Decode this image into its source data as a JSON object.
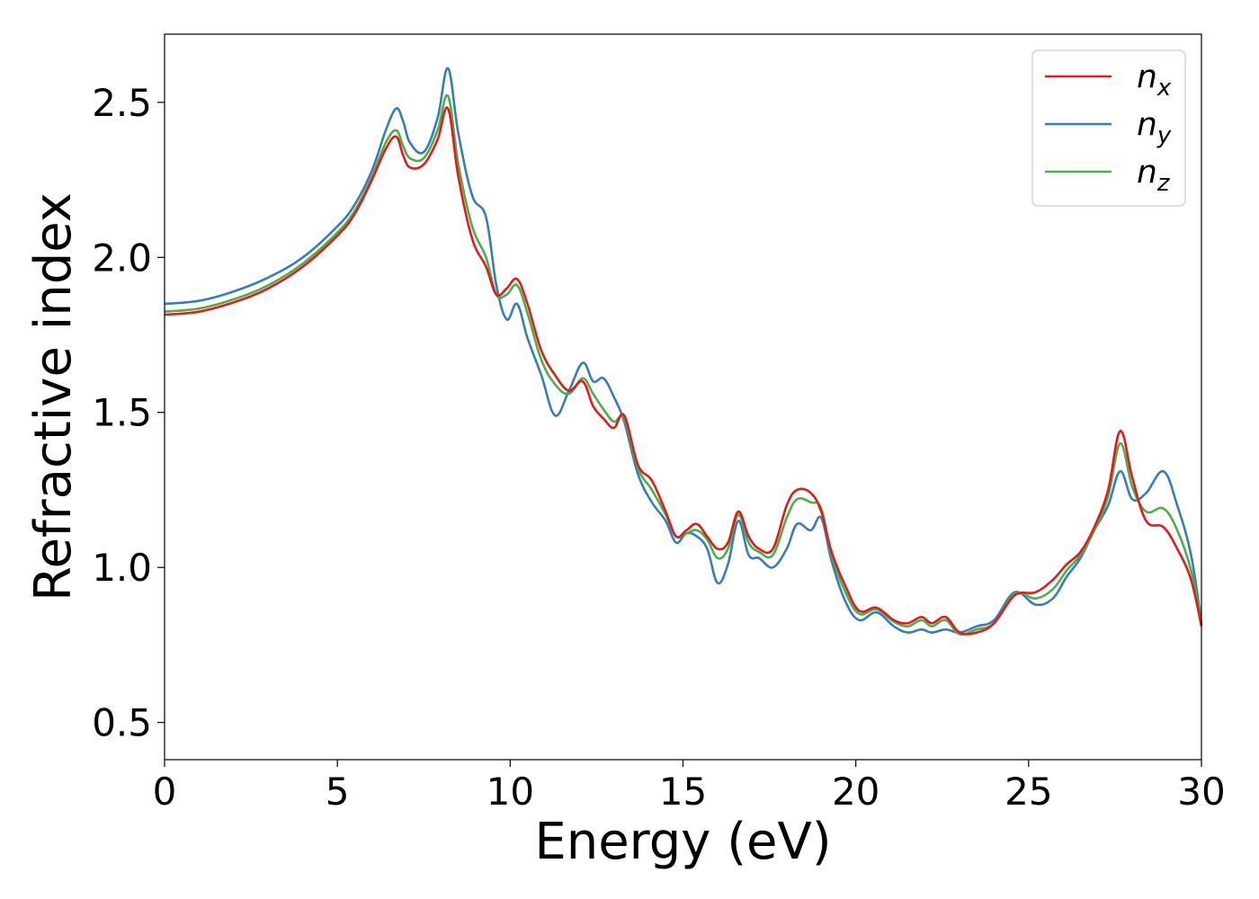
{
  "chart_data": {
    "type": "line",
    "title": "",
    "xlabel": "Energy (eV)",
    "ylabel": "Refractive index",
    "xlim": [
      0,
      30
    ],
    "ylim": [
      0.38,
      2.72
    ],
    "xticks": [
      0,
      5,
      10,
      15,
      20,
      25,
      30
    ],
    "yticks": [
      0.5,
      1.0,
      1.5,
      2.0,
      2.5
    ],
    "xtick_labels": [
      "0",
      "5",
      "10",
      "15",
      "20",
      "25",
      "30"
    ],
    "ytick_labels": [
      "0.5",
      "1.0",
      "1.5",
      "2.0",
      "2.5"
    ],
    "grid": false,
    "legend_position": "top-right",
    "series": [
      {
        "name": "n_x",
        "label_main": "n",
        "label_sub": "x",
        "color": "#e41a1c",
        "x": [
          0,
          1,
          2,
          3,
          4,
          5,
          5.5,
          6,
          6.4,
          6.7,
          6.9,
          7.1,
          7.5,
          7.9,
          8.2,
          8.5,
          8.9,
          9.3,
          9.6,
          9.9,
          10.2,
          10.5,
          10.9,
          11.3,
          11.7,
          12.1,
          12.4,
          12.7,
          13.0,
          13.3,
          13.7,
          14.1,
          14.5,
          14.8,
          15.1,
          15.4,
          15.7,
          16.0,
          16.3,
          16.6,
          16.9,
          17.2,
          17.6,
          18.0,
          18.3,
          18.7,
          19.0,
          19.3,
          19.7,
          20.1,
          20.6,
          21.1,
          21.5,
          21.9,
          22.2,
          22.6,
          23.0,
          23.5,
          24.0,
          24.6,
          25.2,
          25.7,
          26.1,
          26.5,
          26.9,
          27.3,
          27.65,
          28.0,
          28.4,
          28.9,
          29.3,
          29.7,
          30
        ],
        "y": [
          1.815,
          1.825,
          1.855,
          1.9,
          1.97,
          2.07,
          2.14,
          2.25,
          2.35,
          2.39,
          2.33,
          2.29,
          2.3,
          2.38,
          2.48,
          2.26,
          2.06,
          1.97,
          1.88,
          1.9,
          1.93,
          1.85,
          1.7,
          1.62,
          1.57,
          1.6,
          1.52,
          1.48,
          1.45,
          1.49,
          1.33,
          1.28,
          1.18,
          1.1,
          1.12,
          1.14,
          1.1,
          1.06,
          1.08,
          1.18,
          1.1,
          1.06,
          1.06,
          1.2,
          1.25,
          1.24,
          1.18,
          1.05,
          0.94,
          0.86,
          0.87,
          0.83,
          0.82,
          0.84,
          0.82,
          0.84,
          0.79,
          0.79,
          0.82,
          0.91,
          0.92,
          0.96,
          1.01,
          1.05,
          1.13,
          1.25,
          1.44,
          1.29,
          1.15,
          1.13,
          1.06,
          0.96,
          0.81
        ]
      },
      {
        "name": "n_y",
        "label_main": "n",
        "label_sub": "y",
        "color": "#377eb8",
        "x": [
          0,
          1,
          2,
          3,
          4,
          5,
          5.5,
          6,
          6.4,
          6.7,
          6.9,
          7.1,
          7.5,
          7.9,
          8.2,
          8.5,
          8.9,
          9.3,
          9.6,
          9.9,
          10.2,
          10.5,
          10.9,
          11.3,
          11.7,
          12.1,
          12.4,
          12.7,
          13.0,
          13.3,
          13.7,
          14.1,
          14.5,
          14.8,
          15.1,
          15.4,
          15.7,
          16.0,
          16.3,
          16.6,
          16.9,
          17.2,
          17.6,
          18.0,
          18.3,
          18.7,
          19.0,
          19.3,
          19.7,
          20.1,
          20.6,
          21.1,
          21.5,
          21.9,
          22.2,
          22.6,
          23.0,
          23.5,
          24.0,
          24.6,
          25.2,
          25.7,
          26.1,
          26.5,
          26.9,
          27.3,
          27.65,
          28.0,
          28.4,
          28.9,
          29.3,
          29.7,
          30
        ],
        "y": [
          1.85,
          1.86,
          1.89,
          1.935,
          2.0,
          2.1,
          2.17,
          2.28,
          2.41,
          2.48,
          2.44,
          2.37,
          2.34,
          2.45,
          2.61,
          2.4,
          2.2,
          2.13,
          1.91,
          1.8,
          1.85,
          1.74,
          1.62,
          1.49,
          1.57,
          1.66,
          1.6,
          1.61,
          1.55,
          1.47,
          1.3,
          1.21,
          1.15,
          1.08,
          1.11,
          1.1,
          1.06,
          0.95,
          1.01,
          1.15,
          1.04,
          1.03,
          1.0,
          1.06,
          1.14,
          1.12,
          1.16,
          1.02,
          0.89,
          0.83,
          0.855,
          0.81,
          0.79,
          0.8,
          0.79,
          0.8,
          0.79,
          0.81,
          0.83,
          0.92,
          0.88,
          0.9,
          0.97,
          1.03,
          1.12,
          1.2,
          1.31,
          1.22,
          1.24,
          1.31,
          1.2,
          1.04,
          0.82
        ]
      },
      {
        "name": "n_z",
        "label_main": "n",
        "label_sub": "z",
        "color": "#4daf4a",
        "x": [
          0,
          1,
          2,
          3,
          4,
          5,
          5.5,
          6,
          6.4,
          6.7,
          6.9,
          7.1,
          7.5,
          7.9,
          8.2,
          8.5,
          8.9,
          9.3,
          9.6,
          9.9,
          10.2,
          10.5,
          10.9,
          11.3,
          11.7,
          12.1,
          12.4,
          12.7,
          13.0,
          13.3,
          13.7,
          14.1,
          14.5,
          14.8,
          15.1,
          15.4,
          15.7,
          16.0,
          16.3,
          16.6,
          16.9,
          17.2,
          17.6,
          18.0,
          18.3,
          18.7,
          19.0,
          19.3,
          19.7,
          20.1,
          20.6,
          21.1,
          21.5,
          21.9,
          22.2,
          22.6,
          23.0,
          23.5,
          24.0,
          24.6,
          25.2,
          25.7,
          26.1,
          26.5,
          26.9,
          27.3,
          27.65,
          28.0,
          28.4,
          28.9,
          29.3,
          29.7,
          30
        ],
        "y": [
          1.825,
          1.835,
          1.865,
          1.91,
          1.98,
          2.08,
          2.15,
          2.26,
          2.37,
          2.41,
          2.36,
          2.32,
          2.32,
          2.41,
          2.52,
          2.3,
          2.1,
          2.0,
          1.88,
          1.88,
          1.91,
          1.82,
          1.67,
          1.59,
          1.56,
          1.61,
          1.56,
          1.51,
          1.47,
          1.48,
          1.32,
          1.25,
          1.17,
          1.1,
          1.11,
          1.12,
          1.09,
          1.03,
          1.06,
          1.17,
          1.08,
          1.05,
          1.04,
          1.16,
          1.22,
          1.21,
          1.19,
          1.04,
          0.92,
          0.85,
          0.865,
          0.825,
          0.81,
          0.83,
          0.81,
          0.83,
          0.785,
          0.8,
          0.82,
          0.915,
          0.9,
          0.93,
          0.99,
          1.04,
          1.12,
          1.23,
          1.4,
          1.26,
          1.18,
          1.19,
          1.12,
          0.99,
          0.815
        ]
      }
    ]
  }
}
